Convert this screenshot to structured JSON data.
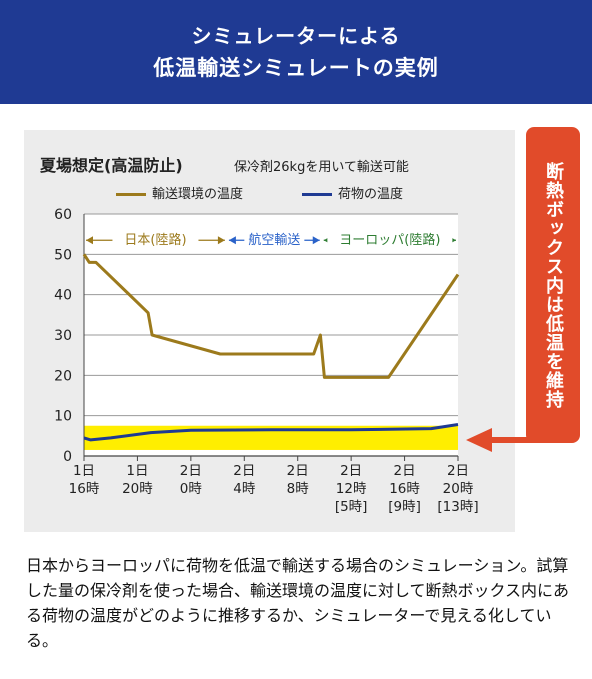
{
  "header": {
    "title_line1": "シミュレーターによる",
    "title_line2": "低温輸送シミュレートの実例"
  },
  "callout": {
    "text": "断熱ボックス内は低温を維持",
    "color": "#e14b2a"
  },
  "description": "日本からヨーロッパに荷物を低温で輸送する場合のシミュレーション。試算した量の保冷剤を使った場合、輸送環境の温度に対して断熱ボックス内にある荷物の温度がどのように推移するか、シミュレーターで見える化している。",
  "chart_data": {
    "type": "line",
    "title": "夏場想定(高温防止)",
    "subtitle": "保冷剤26kgを用いて輸送可能",
    "xlabel": "",
    "ylabel": "",
    "ylim": [
      0,
      60
    ],
    "yticks": [
      "0",
      "10",
      "20",
      "30",
      "40",
      "50",
      "60"
    ],
    "xlim": [
      0,
      28
    ],
    "xticks": [
      {
        "x": 0,
        "l1": "1日",
        "l2": "16時",
        "l3": ""
      },
      {
        "x": 4,
        "l1": "1日",
        "l2": "20時",
        "l3": ""
      },
      {
        "x": 8,
        "l1": "2日",
        "l2": "0時",
        "l3": ""
      },
      {
        "x": 12,
        "l1": "2日",
        "l2": "4時",
        "l3": ""
      },
      {
        "x": 16,
        "l1": "2日",
        "l2": "8時",
        "l3": ""
      },
      {
        "x": 20,
        "l1": "2日",
        "l2": "12時",
        "l3": "[5時]"
      },
      {
        "x": 24,
        "l1": "2日",
        "l2": "16時",
        "l3": "[9時]"
      },
      {
        "x": 28,
        "l1": "2日",
        "l2": "20時",
        "l3": "[13時]"
      }
    ],
    "grid": true,
    "band": {
      "y0": 1.5,
      "y1": 7.5,
      "color": "#ffee00"
    },
    "segments": [
      {
        "label": "日本(陸路)",
        "x0": 0,
        "x1": 10.7,
        "color": "#9c7a1c"
      },
      {
        "label": "航空輸送",
        "x0": 10.7,
        "x1": 17.8,
        "color": "#2a62c9"
      },
      {
        "label": "ヨーロッパ(陸路)",
        "x0": 17.8,
        "x1": 28,
        "color": "#2e7d32"
      }
    ],
    "series": [
      {
        "name": "輸送環境の温度",
        "color": "#9c7a1c",
        "x": [
          0,
          0.4,
          0.9,
          4.8,
          5.1,
          10.2,
          17.2,
          17.7,
          18.0,
          22.8,
          28
        ],
        "y": [
          50,
          48,
          48,
          35.5,
          30,
          25.3,
          25.3,
          30,
          19.5,
          19.5,
          45
        ]
      },
      {
        "name": "荷物の温度",
        "color": "#1f3a93",
        "x": [
          0,
          0.5,
          2,
          5,
          8,
          14,
          20,
          26,
          28
        ],
        "y": [
          4.5,
          4.0,
          4.5,
          5.8,
          6.4,
          6.5,
          6.5,
          6.8,
          7.8
        ]
      }
    ]
  }
}
